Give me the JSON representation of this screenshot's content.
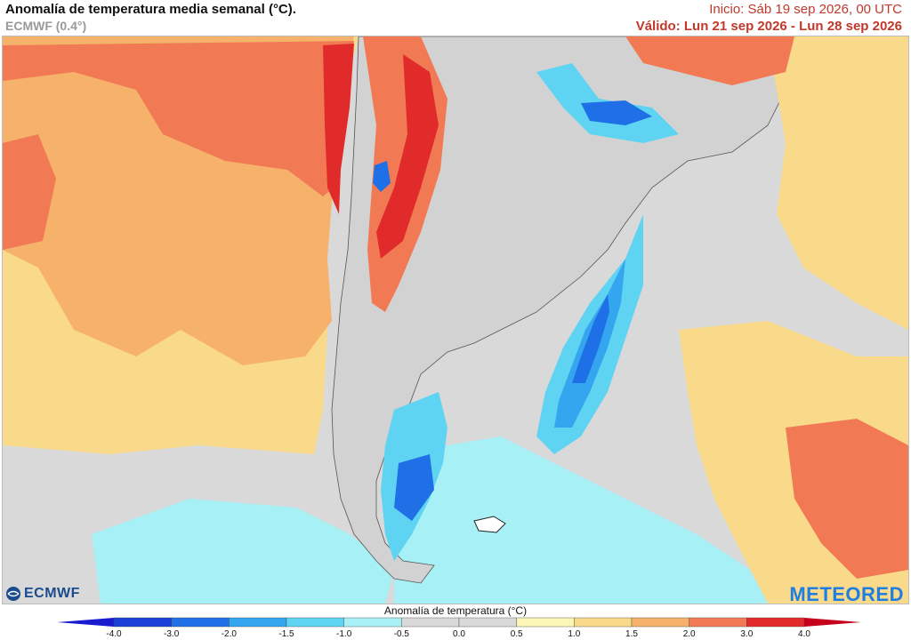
{
  "header": {
    "title": "Anomalía de temperatura media semanal (°C).",
    "subtitle": "ECMWF (0.4°)",
    "init": "Inicio: Sáb 19 sep 2026, 00 UTC",
    "valid": "Válido: Lun 21 sep 2026 - Lun 28 sep 2026"
  },
  "colors": {
    "init_text": "#c0392b",
    "valid_text": "#c0392b",
    "neutral": "#d9d9d9"
  },
  "map": {
    "region": "South America (southern cone)",
    "features": [
      "chile-coast",
      "andes",
      "argentina",
      "uruguay",
      "falkland-islands",
      "tierra-del-fuego"
    ]
  },
  "logos": {
    "left": "ECMWF",
    "right": "METEORED",
    "left_icon": "ecmwf-globe-icon"
  },
  "legend": {
    "title": "Anomalía de temperatura (°C)",
    "ticks": [
      "-4.0",
      "-3.0",
      "-2.0",
      "-1.5",
      "-1.0",
      "-0.5",
      "0.0",
      "0.5",
      "1.0",
      "1.5",
      "2.0",
      "3.0",
      "4.0"
    ],
    "bins": [
      {
        "from": -4.0,
        "to": -3.0,
        "color": "#1a3fd6"
      },
      {
        "from": -3.0,
        "to": -2.0,
        "color": "#1f6fe6"
      },
      {
        "from": -2.0,
        "to": -1.5,
        "color": "#33a6ef"
      },
      {
        "from": -1.5,
        "to": -1.0,
        "color": "#5fd3f2"
      },
      {
        "from": -1.0,
        "to": -0.5,
        "color": "#a6f0f6"
      },
      {
        "from": -0.5,
        "to": 0.0,
        "color": "#d9d9d9"
      },
      {
        "from": 0.0,
        "to": 0.5,
        "color": "#d9d9d9"
      },
      {
        "from": 0.5,
        "to": 1.0,
        "color": "#fbf5b6"
      },
      {
        "from": 1.0,
        "to": 1.5,
        "color": "#f9d98a"
      },
      {
        "from": 1.5,
        "to": 2.0,
        "color": "#f6b16a"
      },
      {
        "from": 2.0,
        "to": 3.0,
        "color": "#f17a55"
      },
      {
        "from": 3.0,
        "to": 4.0,
        "color": "#e12b2b"
      }
    ],
    "low_arrow_color": "#1a1ad0",
    "high_arrow_color": "#c4001c"
  }
}
